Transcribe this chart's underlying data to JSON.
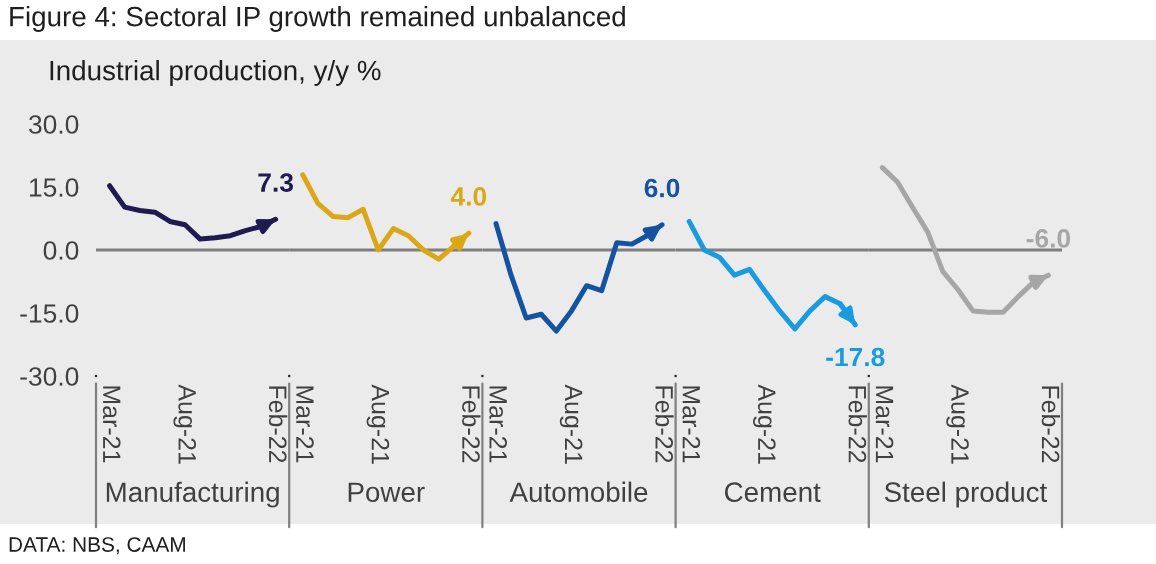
{
  "chart_data": [
    {
      "type": "line",
      "title": "Figure 4: Sectoral IP growth remained unbalanced",
      "subtitle": "Industrial production, y/y %",
      "xlabel": "Manufacturing",
      "annotations": [
        "DATA: NBS, CAAM"
      ],
      "categories": [
        "Mar-21",
        null,
        null,
        null,
        null,
        "Aug-21",
        null,
        null,
        null,
        null,
        null,
        "Feb-22"
      ],
      "series": [
        {
          "color": "#1f1a4f",
          "values": [
            15.3,
            10.2,
            9.4,
            9.0,
            6.8,
            6.0,
            2.6,
            2.9,
            3.4,
            4.6,
            5.6,
            7.3
          ],
          "value_labels": [
            null,
            null,
            null,
            null,
            null,
            null,
            null,
            null,
            null,
            null,
            null,
            "7.3"
          ]
        }
      ],
      "ylim": [
        -30,
        30
      ],
      "yticks": [
        {
          "value": -30,
          "label": "-30.0"
        },
        {
          "value": -15,
          "label": "-15.0"
        },
        {
          "value": 0,
          "label": "0.0"
        },
        {
          "value": 15,
          "label": "15.0"
        },
        {
          "value": 30,
          "label": "30.0"
        }
      ],
      "ref_lines": [
        {
          "axis": "y",
          "value": 0,
          "color": "#7f7f7f"
        }
      ],
      "grid": false,
      "legend": false
    },
    {
      "type": "line",
      "xlabel": "Power",
      "categories": [
        "Mar-21",
        null,
        null,
        null,
        null,
        "Aug-21",
        null,
        null,
        null,
        null,
        null,
        "Feb-22"
      ],
      "series": [
        {
          "color": "#dba716",
          "values": [
            17.9,
            11.1,
            8.0,
            7.7,
            9.7,
            0.0,
            5.1,
            3.4,
            0.0,
            -2.2,
            0.9,
            4.0
          ],
          "value_labels": [
            null,
            null,
            null,
            null,
            null,
            null,
            null,
            null,
            null,
            null,
            null,
            "4.0"
          ]
        }
      ],
      "ylim": [
        -30,
        30
      ],
      "tick_labels": "x",
      "ref_lines": [
        {
          "axis": "y",
          "value": 0,
          "color": "#7f7f7f"
        }
      ],
      "grid": false,
      "legend": false
    },
    {
      "type": "line",
      "xlabel": "Automobile",
      "categories": [
        "Mar-21",
        null,
        null,
        null,
        null,
        "Aug-21",
        null,
        null,
        null,
        null,
        null,
        "Feb-22"
      ],
      "series": [
        {
          "color": "#1552a0",
          "values": [
            6.3,
            -6.0,
            -16.2,
            -15.3,
            -19.3,
            -14.5,
            -8.5,
            -9.7,
            1.7,
            1.4,
            3.4,
            6.0
          ],
          "value_labels": [
            null,
            null,
            null,
            null,
            null,
            null,
            null,
            null,
            null,
            null,
            null,
            "6.0"
          ]
        }
      ],
      "ylim": [
        -30,
        30
      ],
      "tick_labels": "x",
      "ref_lines": [
        {
          "axis": "y",
          "value": 0,
          "color": "#7f7f7f"
        }
      ],
      "grid": false,
      "legend": false
    },
    {
      "type": "line",
      "xlabel": "Cement",
      "categories": [
        "Mar-21",
        null,
        null,
        null,
        null,
        "Aug-21",
        null,
        null,
        null,
        null,
        null,
        "Feb-22"
      ],
      "series": [
        {
          "color": "#1a9be0",
          "values": [
            6.8,
            0.0,
            -1.7,
            -6.0,
            -4.6,
            -9.7,
            -14.5,
            -18.8,
            -14.5,
            -11.1,
            -12.8,
            -17.8
          ],
          "value_labels": [
            null,
            null,
            null,
            null,
            null,
            null,
            null,
            null,
            null,
            null,
            null,
            "-17.8"
          ]
        }
      ],
      "ylim": [
        -30,
        30
      ],
      "tick_labels": "x",
      "ref_lines": [
        {
          "axis": "y",
          "value": 0,
          "color": "#7f7f7f"
        }
      ],
      "grid": false,
      "legend": false
    },
    {
      "type": "line",
      "xlabel": "Steel product",
      "categories": [
        "Mar-21",
        null,
        null,
        null,
        null,
        "Aug-21",
        null,
        null,
        null,
        null,
        null,
        "Feb-22"
      ],
      "series": [
        {
          "color": "#a6a6a6",
          "values": [
            19.6,
            16.2,
            10.2,
            4.3,
            -5.1,
            -9.4,
            -14.5,
            -14.8,
            -14.8,
            -11.1,
            -7.7,
            -6.0
          ],
          "value_labels": [
            null,
            null,
            null,
            null,
            null,
            null,
            null,
            null,
            null,
            null,
            null,
            "-6.0"
          ]
        }
      ],
      "ylim": [
        -30,
        30
      ],
      "tick_labels": "x",
      "ref_lines": [
        {
          "axis": "y",
          "value": 0,
          "color": "#7f7f7f"
        }
      ],
      "grid": false,
      "legend": false
    }
  ]
}
